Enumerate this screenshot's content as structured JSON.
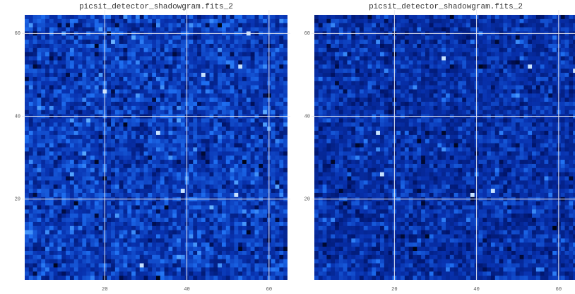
{
  "chart_data": [
    {
      "type": "image",
      "title": "picsit_detector_shadowgram.fits_2",
      "xlim": [
        0.5,
        64.5
      ],
      "ylim": [
        0.5,
        64.5
      ],
      "xticks": [
        20,
        40,
        60
      ],
      "yticks": [
        20,
        40,
        60
      ],
      "grid": true
    },
    {
      "type": "image",
      "title": "picsit_detector_shadowgram.fits_2",
      "xlim": [
        0.5,
        64.5
      ],
      "ylim": [
        0.5,
        64.5
      ],
      "xticks": [
        20,
        40,
        60
      ],
      "yticks": [
        20,
        40,
        60
      ],
      "grid": true
    }
  ]
}
